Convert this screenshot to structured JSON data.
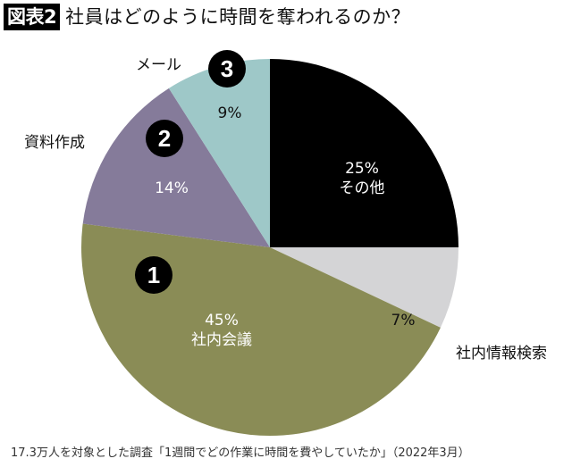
{
  "header": {
    "badge": "図表2",
    "title": "社員はどのように時間を奪われるのか？"
  },
  "footnote": "17.3万人を対象とした調査「1週間でどの作業に時間を費やしていたか」（2022年3月）",
  "labels": {
    "other_pct": "25%",
    "other_name": "その他",
    "search_pct": "7%",
    "search_name": "社内情報検索",
    "meeting_pct": "45%",
    "meeting_name": "社内会議",
    "docs_pct": "14%",
    "docs_name": "資料作成",
    "mail_pct": "9%",
    "mail_name": "メール",
    "rank1": "1",
    "rank2": "2",
    "rank3": "3"
  },
  "colors": {
    "other": "#000000",
    "search": "#d4d4d6",
    "meeting": "#8a8c56",
    "docs": "#857b9a",
    "mail": "#9ec8c8"
  },
  "chart_data": {
    "type": "pie",
    "title": "社員はどのように時間を奪われるのか？",
    "subtitle": "図表2",
    "categories": [
      "その他",
      "社内情報検索",
      "社内会議",
      "資料作成",
      "メール"
    ],
    "values": [
      25,
      7,
      45,
      14,
      9
    ],
    "unit": "%",
    "colors": [
      "#000000",
      "#d4d4d6",
      "#8a8c56",
      "#857b9a",
      "#9ec8c8"
    ],
    "start_angle": "12 o'clock",
    "direction": "clockwise",
    "rank_annotations": [
      {
        "rank": 1,
        "category": "社内会議"
      },
      {
        "rank": 2,
        "category": "資料作成"
      },
      {
        "rank": 3,
        "category": "メール"
      }
    ],
    "note": "17.3万人を対象とした調査「1週間でどの作業に時間を費やしていたか」（2022年3月）",
    "legend": "none (direct labels)"
  }
}
